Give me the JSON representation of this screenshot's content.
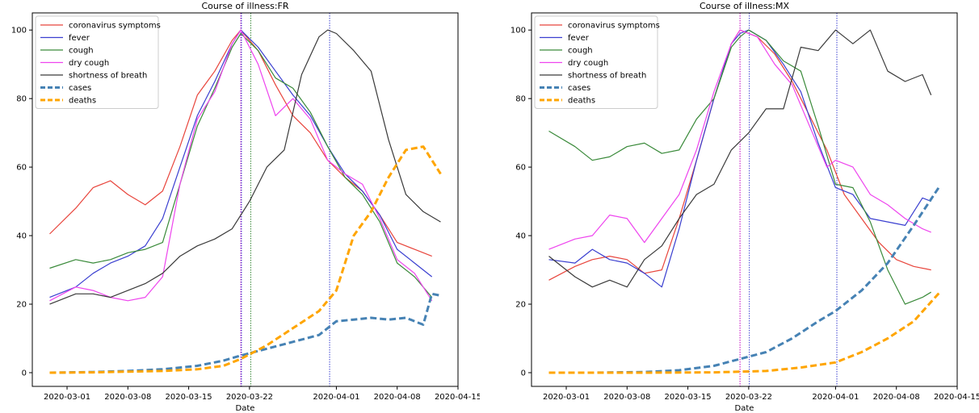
{
  "colors": {
    "coronavirus symptoms": "#e8453c",
    "fever": "#3a3fd0",
    "cough": "#3a8a3a",
    "dry cough": "#ee44ee",
    "shortness of breath": "#3a3a3a",
    "cases": "#4682b4",
    "deaths": "#ffa500"
  },
  "chart_data": [
    {
      "type": "line",
      "title": "Course of illness:FR",
      "xlabel": "Date",
      "ylabel": "",
      "xlim": [
        "2020-02-26",
        "2020-04-15"
      ],
      "ylim": [
        -4,
        105
      ],
      "xticks": [
        "2020-03-01",
        "2020-03-08",
        "2020-03-15",
        "2020-03-22",
        "2020-04-01",
        "2020-04-08",
        "2020-04-15"
      ],
      "xtick_labels": [
        "2020-03-01",
        "2020-03-08",
        "2020-03-15",
        "2020-03-22",
        "2020-04-01",
        "2020-04-08",
        "2020-04-15"
      ],
      "yticks": [
        0,
        20,
        40,
        60,
        80,
        100
      ],
      "ytick_labels": [
        "0",
        "20",
        "40",
        "60",
        "80",
        "100"
      ],
      "grid": false,
      "legend": "top-left",
      "vlines": [
        {
          "x": "2020-03-21",
          "color": "#c000c0"
        },
        {
          "x": "2020-03-21",
          "color": "#3a3fd0"
        },
        {
          "x": "2020-03-22",
          "color": "#3a8a3a"
        },
        {
          "x": "2020-03-31",
          "color": "#3a3fd0"
        }
      ],
      "series": [
        {
          "name": "coronavirus symptoms",
          "style": "solid",
          "x": [
            "2020-02-28",
            "2020-03-02",
            "2020-03-04",
            "2020-03-06",
            "2020-03-08",
            "2020-03-10",
            "2020-03-12",
            "2020-03-14",
            "2020-03-16",
            "2020-03-18",
            "2020-03-20",
            "2020-03-21",
            "2020-03-23",
            "2020-03-25",
            "2020-03-27",
            "2020-03-29",
            "2020-03-31",
            "2020-04-02",
            "2020-04-04",
            "2020-04-06",
            "2020-04-08",
            "2020-04-10",
            "2020-04-12"
          ],
          "y": [
            40.5,
            48,
            54,
            56,
            52,
            49,
            53,
            66,
            81,
            88,
            97,
            100,
            94,
            84,
            75,
            70,
            62,
            57,
            53,
            46,
            38,
            36,
            34
          ]
        },
        {
          "name": "fever",
          "style": "solid",
          "x": [
            "2020-02-28",
            "2020-03-02",
            "2020-03-04",
            "2020-03-06",
            "2020-03-08",
            "2020-03-10",
            "2020-03-12",
            "2020-03-14",
            "2020-03-16",
            "2020-03-18",
            "2020-03-20",
            "2020-03-21",
            "2020-03-23",
            "2020-03-25",
            "2020-03-27",
            "2020-03-29",
            "2020-03-31",
            "2020-04-02",
            "2020-04-04",
            "2020-04-06",
            "2020-04-08",
            "2020-04-10",
            "2020-04-12"
          ],
          "y": [
            22,
            25,
            29,
            32,
            34,
            37,
            45,
            60,
            75,
            85,
            96,
            100,
            95,
            88,
            81,
            75,
            66,
            58,
            53,
            46,
            36,
            32,
            28
          ]
        },
        {
          "name": "cough",
          "style": "solid",
          "x": [
            "2020-02-28",
            "2020-03-02",
            "2020-03-04",
            "2020-03-06",
            "2020-03-08",
            "2020-03-10",
            "2020-03-12",
            "2020-03-14",
            "2020-03-16",
            "2020-03-18",
            "2020-03-20",
            "2020-03-21",
            "2020-03-23",
            "2020-03-25",
            "2020-03-27",
            "2020-03-29",
            "2020-03-31",
            "2020-04-02",
            "2020-04-04",
            "2020-04-06",
            "2020-04-08",
            "2020-04-10",
            "2020-04-12"
          ],
          "y": [
            30.5,
            33,
            32,
            33,
            35,
            36,
            38,
            55,
            72,
            83,
            95,
            99,
            94,
            86,
            83,
            76,
            66,
            57,
            52,
            44,
            32,
            28,
            22
          ]
        },
        {
          "name": "dry cough",
          "style": "solid",
          "x": [
            "2020-02-28",
            "2020-03-02",
            "2020-03-04",
            "2020-03-06",
            "2020-03-08",
            "2020-03-10",
            "2020-03-12",
            "2020-03-14",
            "2020-03-16",
            "2020-03-18",
            "2020-03-20",
            "2020-03-21",
            "2020-03-23",
            "2020-03-25",
            "2020-03-27",
            "2020-03-29",
            "2020-03-31",
            "2020-04-02",
            "2020-04-04",
            "2020-04-06",
            "2020-04-08",
            "2020-04-10",
            "2020-04-12"
          ],
          "y": [
            21,
            25,
            24,
            22,
            21,
            22,
            28,
            55,
            74,
            82,
            96,
            100,
            90,
            75,
            80,
            74,
            62,
            58,
            55,
            45,
            33,
            29,
            21
          ]
        },
        {
          "name": "shortness of breath",
          "style": "solid",
          "x": [
            "2020-02-28",
            "2020-03-02",
            "2020-03-04",
            "2020-03-06",
            "2020-03-08",
            "2020-03-10",
            "2020-03-12",
            "2020-03-14",
            "2020-03-16",
            "2020-03-18",
            "2020-03-20",
            "2020-03-22",
            "2020-03-24",
            "2020-03-26",
            "2020-03-28",
            "2020-03-30",
            "2020-03-31",
            "2020-04-01",
            "2020-04-03",
            "2020-04-05",
            "2020-04-07",
            "2020-04-09",
            "2020-04-11",
            "2020-04-13"
          ],
          "y": [
            20,
            23,
            23,
            22,
            24,
            26,
            29,
            34,
            37,
            39,
            42,
            50,
            60,
            65,
            87,
            98,
            100,
            99,
            94,
            88,
            68,
            52,
            47,
            44
          ]
        },
        {
          "name": "cases",
          "style": "dashed",
          "x": [
            "2020-02-28",
            "2020-03-04",
            "2020-03-08",
            "2020-03-12",
            "2020-03-16",
            "2020-03-19",
            "2020-03-21",
            "2020-03-24",
            "2020-03-27",
            "2020-03-30",
            "2020-04-01",
            "2020-04-03",
            "2020-04-05",
            "2020-04-07",
            "2020-04-09",
            "2020-04-11",
            "2020-04-12",
            "2020-04-13"
          ],
          "y": [
            0,
            0.2,
            0.5,
            1,
            2,
            3.5,
            5,
            7,
            9,
            11,
            15,
            15.5,
            16,
            15.5,
            16,
            14,
            23,
            22.5
          ]
        },
        {
          "name": "deaths",
          "style": "dashed",
          "x": [
            "2020-02-28",
            "2020-03-04",
            "2020-03-08",
            "2020-03-12",
            "2020-03-16",
            "2020-03-19",
            "2020-03-21",
            "2020-03-24",
            "2020-03-27",
            "2020-03-30",
            "2020-04-01",
            "2020-04-03",
            "2020-04-05",
            "2020-04-07",
            "2020-04-09",
            "2020-04-11",
            "2020-04-13"
          ],
          "y": [
            0,
            0.1,
            0.3,
            0.5,
            1,
            2,
            4,
            8,
            13,
            18,
            24,
            40,
            47,
            57,
            65,
            66,
            58
          ]
        }
      ]
    },
    {
      "type": "line",
      "title": "Course of illness:MX",
      "xlabel": "Date",
      "ylabel": "",
      "xlim": [
        "2020-02-26",
        "2020-04-15"
      ],
      "ylim": [
        -4,
        105
      ],
      "xticks": [
        "2020-03-01",
        "2020-03-08",
        "2020-03-15",
        "2020-03-22",
        "2020-04-01",
        "2020-04-08",
        "2020-04-15"
      ],
      "xtick_labels": [
        "2020-03-01",
        "2020-03-08",
        "2020-03-15",
        "2020-03-22",
        "2020-04-01",
        "2020-04-08",
        "2020-04-15"
      ],
      "yticks": [
        0,
        20,
        40,
        60,
        80,
        100
      ],
      "ytick_labels": [
        "0",
        "20",
        "40",
        "60",
        "80",
        "100"
      ],
      "grid": false,
      "legend": "top-left",
      "vlines": [
        {
          "x": "2020-03-21",
          "color": "#c000c0"
        },
        {
          "x": "2020-03-22",
          "color": "#3a3fd0"
        },
        {
          "x": "2020-04-01",
          "color": "#3a3fd0"
        }
      ],
      "series": [
        {
          "name": "coronavirus symptoms",
          "style": "solid",
          "x": [
            "2020-02-28",
            "2020-03-02",
            "2020-03-04",
            "2020-03-06",
            "2020-03-08",
            "2020-03-10",
            "2020-03-12",
            "2020-03-14",
            "2020-03-16",
            "2020-03-18",
            "2020-03-20",
            "2020-03-21",
            "2020-03-23",
            "2020-03-25",
            "2020-03-27",
            "2020-03-29",
            "2020-03-31",
            "2020-04-02",
            "2020-04-04",
            "2020-04-06",
            "2020-04-08",
            "2020-04-10",
            "2020-04-12"
          ],
          "y": [
            27,
            31,
            33,
            34,
            33,
            29,
            30,
            45,
            62,
            80,
            96,
            100,
            98,
            93,
            85,
            75,
            65,
            52,
            45,
            38,
            33,
            31,
            30
          ]
        },
        {
          "name": "fever",
          "style": "solid",
          "x": [
            "2020-02-28",
            "2020-03-02",
            "2020-03-04",
            "2020-03-06",
            "2020-03-08",
            "2020-03-10",
            "2020-03-12",
            "2020-03-14",
            "2020-03-16",
            "2020-03-18",
            "2020-03-20",
            "2020-03-21",
            "2020-03-22",
            "2020-03-24",
            "2020-03-26",
            "2020-03-28",
            "2020-03-30",
            "2020-04-01",
            "2020-04-03",
            "2020-04-05",
            "2020-04-07",
            "2020-04-09",
            "2020-04-11",
            "2020-04-12"
          ],
          "y": [
            33,
            32,
            36,
            33,
            32,
            29,
            25,
            42,
            62,
            80,
            96,
            99,
            100,
            97,
            90,
            82,
            67,
            54,
            52,
            45,
            44,
            43,
            51,
            50
          ]
        },
        {
          "name": "cough",
          "style": "solid",
          "x": [
            "2020-02-28",
            "2020-03-02",
            "2020-03-04",
            "2020-03-06",
            "2020-03-08",
            "2020-03-10",
            "2020-03-12",
            "2020-03-14",
            "2020-03-16",
            "2020-03-18",
            "2020-03-20",
            "2020-03-21",
            "2020-03-22",
            "2020-03-24",
            "2020-03-26",
            "2020-03-28",
            "2020-03-30",
            "2020-04-01",
            "2020-04-03",
            "2020-04-05",
            "2020-04-07",
            "2020-04-09",
            "2020-04-11",
            "2020-04-12"
          ],
          "y": [
            70.5,
            66,
            62,
            63,
            66,
            67,
            64,
            65,
            74,
            80,
            95,
            98,
            100,
            97,
            91,
            88,
            72,
            55,
            54,
            44,
            30,
            20,
            22,
            23.5
          ]
        },
        {
          "name": "dry cough",
          "style": "solid",
          "x": [
            "2020-02-28",
            "2020-03-02",
            "2020-03-04",
            "2020-03-06",
            "2020-03-08",
            "2020-03-10",
            "2020-03-12",
            "2020-03-14",
            "2020-03-16",
            "2020-03-18",
            "2020-03-20",
            "2020-03-21",
            "2020-03-23",
            "2020-03-25",
            "2020-03-27",
            "2020-03-29",
            "2020-03-31",
            "2020-04-01",
            "2020-04-03",
            "2020-04-05",
            "2020-04-07",
            "2020-04-09",
            "2020-04-11",
            "2020-04-12"
          ],
          "y": [
            36,
            39,
            40,
            46,
            45,
            38,
            45,
            52,
            65,
            82,
            96,
            100,
            98,
            90,
            84,
            72,
            60,
            62,
            60,
            52,
            49,
            45,
            42,
            41
          ]
        },
        {
          "name": "shortness of breath",
          "style": "solid",
          "x": [
            "2020-02-28",
            "2020-03-02",
            "2020-03-04",
            "2020-03-06",
            "2020-03-08",
            "2020-03-10",
            "2020-03-12",
            "2020-03-14",
            "2020-03-16",
            "2020-03-18",
            "2020-03-20",
            "2020-03-22",
            "2020-03-24",
            "2020-03-26",
            "2020-03-28",
            "2020-03-30",
            "2020-04-01",
            "2020-04-03",
            "2020-04-05",
            "2020-04-07",
            "2020-04-09",
            "2020-04-11",
            "2020-04-12"
          ],
          "y": [
            34,
            28,
            25,
            27,
            25,
            33,
            37,
            45,
            52,
            55,
            65,
            70,
            77,
            77,
            95,
            94,
            100,
            96,
            100,
            88,
            85,
            87,
            81
          ]
        },
        {
          "name": "cases",
          "style": "dashed",
          "x": [
            "2020-02-28",
            "2020-03-04",
            "2020-03-10",
            "2020-03-14",
            "2020-03-18",
            "2020-03-21",
            "2020-03-24",
            "2020-03-27",
            "2020-03-30",
            "2020-04-01",
            "2020-04-04",
            "2020-04-07",
            "2020-04-10",
            "2020-04-13"
          ],
          "y": [
            0,
            0,
            0.2,
            0.7,
            2,
            4,
            6,
            10,
            15,
            18,
            24,
            32,
            43,
            54.5
          ]
        },
        {
          "name": "deaths",
          "style": "dashed",
          "x": [
            "2020-02-28",
            "2020-03-10",
            "2020-03-18",
            "2020-03-24",
            "2020-03-28",
            "2020-04-01",
            "2020-04-04",
            "2020-04-07",
            "2020-04-10",
            "2020-04-13"
          ],
          "y": [
            0,
            0,
            0.1,
            0.5,
            1.5,
            3,
            6,
            10,
            15,
            23.5
          ]
        }
      ]
    }
  ]
}
